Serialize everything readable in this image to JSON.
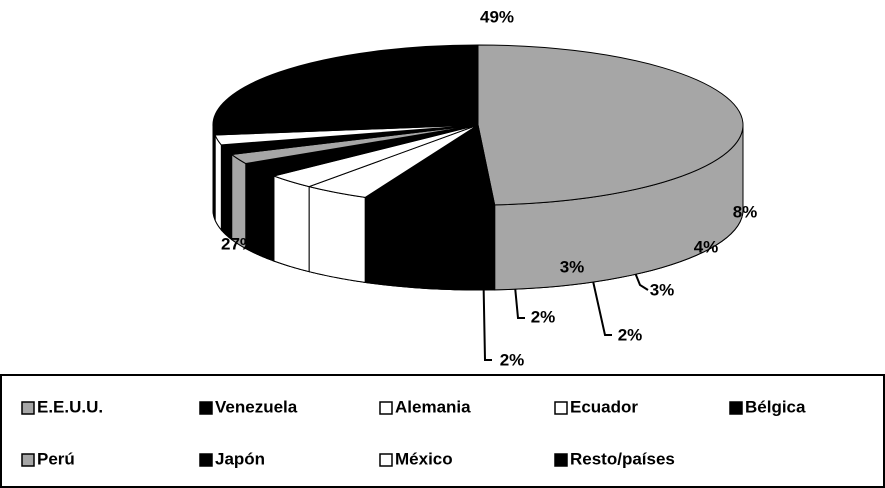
{
  "chart_data": {
    "type": "pie3d",
    "categories": [
      "E.E.U.U.",
      "Venezuela",
      "Alemania",
      "Ecuador",
      "Bélgica",
      "Perú",
      "Japón",
      "México",
      "Resto/países"
    ],
    "values": [
      49,
      8,
      4,
      3,
      3,
      2,
      2,
      2,
      27
    ],
    "value_labels": [
      "49%",
      "8%",
      "4%",
      "3%",
      "3%",
      "2%",
      "2%",
      "2%",
      "27%"
    ],
    "colors": [
      "#a6a6a6",
      "#000000",
      "#ffffff",
      "#ffffff",
      "#000000",
      "#a6a6a6",
      "#000000",
      "#ffffff",
      "#000000"
    ]
  }
}
